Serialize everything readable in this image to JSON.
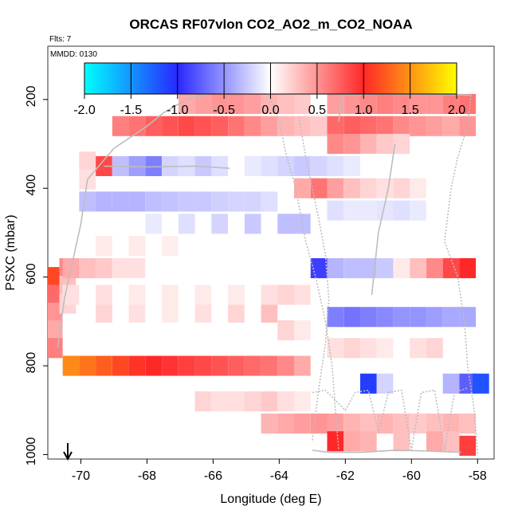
{
  "chart_data": {
    "type": "heatmap",
    "title": "ORCAS RF07vlon CO2_AO2_m_CO2_NOAA",
    "flights_label": "Flts: 7",
    "date_label": "MMDD: 0130",
    "xlabel": "Longitude (deg E)",
    "ylabel": "PSXC (mbar)",
    "xlim": [
      -71.0,
      -57.5
    ],
    "ylim": [
      1010,
      80
    ],
    "x_ticks": [
      -70,
      -68,
      -66,
      -64,
      -62,
      -60,
      -58
    ],
    "y_ticks": [
      200,
      400,
      600,
      800,
      1000
    ],
    "colorbar": {
      "range": [
        -2.0,
        2.0
      ],
      "ticks": [
        "-2.0",
        "-1.5",
        "-1.0",
        "-0.5",
        "0.0",
        "0.5",
        "1.0",
        "1.5",
        "2.0"
      ]
    },
    "cells": [
      [
        -70.8,
        600,
        1.15
      ],
      [
        -70.8,
        640,
        0.7
      ],
      [
        -70.8,
        680,
        0.5
      ],
      [
        -70.8,
        720,
        0.4
      ],
      [
        -70.8,
        760,
        0.6
      ],
      [
        -70.4,
        580,
        0.55
      ],
      [
        -70.4,
        620,
        0.3
      ],
      [
        -70.4,
        660,
        0.2
      ],
      [
        -70.3,
        800,
        1.45
      ],
      [
        -69.8,
        800,
        1.35
      ],
      [
        -69.3,
        800,
        1.25
      ],
      [
        -68.8,
        800,
        1.15
      ],
      [
        -68.3,
        800,
        1.05
      ],
      [
        -67.8,
        800,
        1.0
      ],
      [
        -67.3,
        800,
        0.95
      ],
      [
        -66.8,
        800,
        0.9
      ],
      [
        -66.3,
        800,
        0.85
      ],
      [
        -65.8,
        800,
        0.8
      ],
      [
        -65.3,
        800,
        0.75
      ],
      [
        -64.8,
        800,
        0.7
      ],
      [
        -64.3,
        800,
        0.65
      ],
      [
        -63.8,
        800,
        0.55
      ],
      [
        -63.3,
        800,
        0.4
      ],
      [
        -70.3,
        580,
        0.4
      ],
      [
        -69.8,
        580,
        0.3
      ],
      [
        -69.3,
        580,
        0.25
      ],
      [
        -68.8,
        580,
        0.15
      ],
      [
        -68.3,
        580,
        0.15
      ],
      [
        -69.3,
        530,
        0.1
      ],
      [
        -68.3,
        530,
        0.1
      ],
      [
        -67.3,
        530,
        0.08
      ],
      [
        -69.8,
        430,
        -0.3
      ],
      [
        -69.3,
        430,
        -0.35
      ],
      [
        -68.8,
        430,
        -0.35
      ],
      [
        -68.3,
        430,
        -0.35
      ],
      [
        -67.8,
        430,
        -0.3
      ],
      [
        -67.3,
        430,
        -0.28
      ],
      [
        -66.8,
        430,
        -0.25
      ],
      [
        -66.3,
        430,
        -0.25
      ],
      [
        -65.8,
        430,
        -0.22
      ],
      [
        -65.3,
        430,
        -0.2
      ],
      [
        -64.8,
        430,
        -0.2
      ],
      [
        -64.3,
        430,
        -0.15
      ],
      [
        -67.8,
        480,
        -0.1
      ],
      [
        -66.8,
        480,
        -0.15
      ],
      [
        -65.8,
        480,
        -0.2
      ],
      [
        -64.8,
        480,
        -0.25
      ],
      [
        -63.8,
        480,
        -0.3
      ],
      [
        -63.3,
        480,
        -0.3
      ],
      [
        -69.3,
        350,
        0.85
      ],
      [
        -68.8,
        350,
        -0.3
      ],
      [
        -68.3,
        350,
        -0.45
      ],
      [
        -67.8,
        350,
        -0.6
      ],
      [
        -67.3,
        350,
        -0.2
      ],
      [
        -66.8,
        350,
        -0.15
      ],
      [
        -66.3,
        350,
        -0.25
      ],
      [
        -65.8,
        350,
        -0.15
      ],
      [
        -69.8,
        340,
        0.2
      ],
      [
        -69.8,
        380,
        0.15
      ],
      [
        -68.8,
        260,
        0.6
      ],
      [
        -68.3,
        260,
        0.65
      ],
      [
        -67.8,
        260,
        0.75
      ],
      [
        -67.3,
        260,
        0.8
      ],
      [
        -66.8,
        260,
        0.85
      ],
      [
        -66.3,
        260,
        0.8
      ],
      [
        -65.8,
        260,
        0.75
      ],
      [
        -65.3,
        260,
        0.65
      ],
      [
        -64.8,
        260,
        0.55
      ],
      [
        -64.3,
        260,
        0.45
      ],
      [
        -63.8,
        260,
        0.35
      ],
      [
        -63.3,
        260,
        0.3
      ],
      [
        -62.8,
        260,
        0.25
      ],
      [
        -66.8,
        210,
        0.4
      ],
      [
        -66.3,
        210,
        0.45
      ],
      [
        -65.8,
        210,
        0.5
      ],
      [
        -65.3,
        210,
        0.5
      ],
      [
        -64.8,
        210,
        0.45
      ],
      [
        -64.3,
        210,
        0.35
      ],
      [
        -63.8,
        210,
        0.3
      ],
      [
        -63.3,
        210,
        0.25
      ],
      [
        -62.3,
        210,
        0.45
      ],
      [
        -61.8,
        210,
        0.5
      ],
      [
        -61.3,
        210,
        0.55
      ],
      [
        -60.8,
        210,
        0.6
      ],
      [
        -60.3,
        210,
        0.55
      ],
      [
        -59.8,
        210,
        0.5
      ],
      [
        -59.3,
        210,
        0.5
      ],
      [
        -58.8,
        210,
        0.6
      ],
      [
        -58.3,
        210,
        0.65
      ],
      [
        -62.3,
        260,
        0.7
      ],
      [
        -61.8,
        260,
        0.75
      ],
      [
        -61.3,
        260,
        0.7
      ],
      [
        -60.8,
        260,
        0.65
      ],
      [
        -60.3,
        260,
        0.55
      ],
      [
        -59.8,
        260,
        0.5
      ],
      [
        -59.3,
        260,
        0.45
      ],
      [
        -58.8,
        260,
        0.4
      ],
      [
        -58.3,
        260,
        0.5
      ],
      [
        -62.3,
        300,
        0.55
      ],
      [
        -61.8,
        300,
        0.5
      ],
      [
        -61.3,
        300,
        0.35
      ],
      [
        -60.8,
        300,
        0.25
      ],
      [
        -60.3,
        300,
        0.2
      ],
      [
        -64.8,
        350,
        -0.1
      ],
      [
        -64.3,
        350,
        -0.15
      ],
      [
        -63.8,
        350,
        -0.2
      ],
      [
        -63.3,
        350,
        -0.25
      ],
      [
        -62.8,
        350,
        -0.2
      ],
      [
        -62.3,
        350,
        -0.15
      ],
      [
        -61.8,
        350,
        -0.1
      ],
      [
        -63.3,
        400,
        0.4
      ],
      [
        -62.8,
        400,
        0.65
      ],
      [
        -62.3,
        400,
        0.45
      ],
      [
        -61.8,
        400,
        0.3
      ],
      [
        -61.3,
        400,
        0.2
      ],
      [
        -60.8,
        400,
        0.15
      ],
      [
        -60.3,
        400,
        0.2
      ],
      [
        -59.8,
        400,
        0.1
      ],
      [
        -62.3,
        450,
        -0.15
      ],
      [
        -61.8,
        450,
        -0.1
      ],
      [
        -61.3,
        450,
        -0.1
      ],
      [
        -60.8,
        450,
        -0.12
      ],
      [
        -60.3,
        450,
        -0.15
      ],
      [
        -59.8,
        450,
        -0.1
      ],
      [
        -62.8,
        580,
        -0.9
      ],
      [
        -62.3,
        580,
        -0.35
      ],
      [
        -61.8,
        580,
        -0.3
      ],
      [
        -61.3,
        580,
        -0.3
      ],
      [
        -60.8,
        580,
        -0.25
      ],
      [
        -60.3,
        580,
        0.1
      ],
      [
        -59.8,
        580,
        0.3
      ],
      [
        -59.3,
        580,
        0.55
      ],
      [
        -58.8,
        580,
        0.85
      ],
      [
        -58.3,
        580,
        1.0
      ],
      [
        -62.3,
        690,
        -0.6
      ],
      [
        -61.8,
        690,
        -0.65
      ],
      [
        -61.3,
        690,
        -0.6
      ],
      [
        -60.8,
        690,
        -0.55
      ],
      [
        -60.3,
        690,
        -0.5
      ],
      [
        -59.8,
        690,
        -0.5
      ],
      [
        -59.3,
        690,
        -0.45
      ],
      [
        -58.8,
        690,
        -0.4
      ],
      [
        -58.3,
        690,
        -0.4
      ],
      [
        -61.3,
        840,
        -1.1
      ],
      [
        -60.8,
        840,
        -0.2
      ],
      [
        -58.8,
        840,
        -0.35
      ],
      [
        -58.3,
        840,
        -0.75
      ],
      [
        -57.9,
        840,
        -1.2
      ],
      [
        -62.3,
        760,
        0.15
      ],
      [
        -61.8,
        760,
        0.2
      ],
      [
        -61.3,
        760,
        0.15
      ],
      [
        -60.8,
        760,
        0.1
      ],
      [
        -59.8,
        760,
        0.15
      ],
      [
        -59.3,
        760,
        0.2
      ],
      [
        -66.3,
        880,
        0.2
      ],
      [
        -65.8,
        880,
        0.15
      ],
      [
        -65.3,
        880,
        0.15
      ],
      [
        -64.8,
        880,
        0.2
      ],
      [
        -64.3,
        880,
        0.25
      ],
      [
        -63.8,
        880,
        0.15
      ],
      [
        -63.3,
        880,
        0.1
      ],
      [
        -64.3,
        930,
        0.35
      ],
      [
        -63.8,
        930,
        0.4
      ],
      [
        -63.3,
        930,
        0.45
      ],
      [
        -62.8,
        930,
        0.5
      ],
      [
        -62.3,
        930,
        0.45
      ],
      [
        -61.8,
        930,
        0.35
      ],
      [
        -61.3,
        930,
        0.3
      ],
      [
        -60.8,
        930,
        0.35
      ],
      [
        -60.3,
        930,
        0.3
      ],
      [
        -59.8,
        930,
        0.25
      ],
      [
        -59.3,
        930,
        0.3
      ],
      [
        -58.8,
        930,
        0.35
      ],
      [
        -58.3,
        930,
        0.3
      ],
      [
        -62.3,
        970,
        1.0
      ],
      [
        -61.8,
        970,
        0.4
      ],
      [
        -61.3,
        970,
        0.35
      ],
      [
        -60.3,
        970,
        0.3
      ],
      [
        -59.3,
        970,
        0.4
      ],
      [
        -58.8,
        970,
        0.3
      ],
      [
        -58.3,
        980,
        0.9
      ],
      [
        -69.3,
        680,
        0.2
      ],
      [
        -68.3,
        680,
        0.15
      ],
      [
        -67.3,
        680,
        0.1
      ],
      [
        -66.3,
        680,
        0.15
      ],
      [
        -65.3,
        680,
        0.2
      ],
      [
        -64.3,
        680,
        0.3
      ],
      [
        -63.8,
        720,
        0.2
      ],
      [
        -63.3,
        720,
        0.1
      ],
      [
        -70.3,
        640,
        0.15
      ],
      [
        -69.3,
        640,
        0.15
      ],
      [
        -68.3,
        640,
        0.1
      ],
      [
        -67.3,
        640,
        0.1
      ],
      [
        -66.3,
        640,
        0.1
      ],
      [
        -65.3,
        640,
        0.1
      ],
      [
        -64.3,
        640,
        0.15
      ],
      [
        -63.8,
        640,
        0.2
      ],
      [
        -63.3,
        640,
        0.15
      ]
    ],
    "tracks": [
      [
        [
          -70.7,
          760
        ],
        [
          -70.5,
          650
        ],
        [
          -70.0,
          480
        ],
        [
          -69.8,
          380
        ],
        [
          -69.0,
          310
        ],
        [
          -68.0,
          260
        ],
        [
          -67.5,
          230
        ],
        [
          -66.8,
          200
        ],
        [
          -66.0,
          185
        ],
        [
          -65.0,
          180
        ],
        [
          -63.5,
          185
        ]
      ],
      [
        [
          -69.3,
          350
        ],
        [
          -68.0,
          352
        ],
        [
          -66.5,
          350
        ],
        [
          -65.5,
          355
        ]
      ],
      [
        [
          -64.3,
          190
        ],
        [
          -64.0,
          250
        ],
        [
          -63.8,
          320
        ],
        [
          -63.5,
          400
        ],
        [
          -63.2,
          520
        ],
        [
          -62.9,
          600
        ],
        [
          -62.6,
          700
        ],
        [
          -62.4,
          800
        ],
        [
          -62.3,
          900
        ],
        [
          -62.2,
          990
        ]
      ],
      [
        [
          -63.4,
          240
        ],
        [
          -63.2,
          330
        ],
        [
          -63.0,
          400
        ],
        [
          -62.8,
          470
        ],
        [
          -62.6,
          550
        ],
        [
          -62.5,
          650
        ],
        [
          -62.6,
          750
        ],
        [
          -62.8,
          850
        ],
        [
          -63.0,
          970
        ]
      ],
      [
        [
          -62.2,
          250
        ],
        [
          -62.1,
          190
        ],
        [
          -61.0,
          188
        ],
        [
          -59.5,
          189
        ],
        [
          -58.2,
          190
        ]
      ],
      [
        [
          -58.2,
          190
        ],
        [
          -58.3,
          260
        ],
        [
          -58.6,
          330
        ],
        [
          -58.8,
          400
        ],
        [
          -59.0,
          520
        ],
        [
          -58.6,
          600
        ],
        [
          -58.4,
          700
        ],
        [
          -58.3,
          800
        ],
        [
          -58.1,
          900
        ],
        [
          -58.0,
          1000
        ]
      ],
      [
        [
          -60.5,
          300
        ],
        [
          -60.7,
          400
        ],
        [
          -61.0,
          500
        ],
        [
          -61.2,
          640
        ]
      ],
      [
        [
          -63.0,
          990
        ],
        [
          -62.5,
          995
        ],
        [
          -61.5,
          995
        ],
        [
          -60.5,
          990
        ],
        [
          -59.5,
          992
        ],
        [
          -58.5,
          995
        ]
      ],
      [
        [
          -63.0,
          860
        ],
        [
          -62.6,
          855
        ],
        [
          -62.0,
          900
        ],
        [
          -61.7,
          860
        ],
        [
          -61.3,
          855
        ],
        [
          -61.0,
          950
        ],
        [
          -60.7,
          860
        ],
        [
          -60.3,
          855
        ],
        [
          -60.0,
          990
        ],
        [
          -59.7,
          860
        ],
        [
          -59.3,
          855
        ],
        [
          -59.0,
          990
        ],
        [
          -58.7,
          860
        ],
        [
          -58.3,
          850
        ]
      ]
    ],
    "annotation": "Flight start arrow at longitude -70.9"
  }
}
